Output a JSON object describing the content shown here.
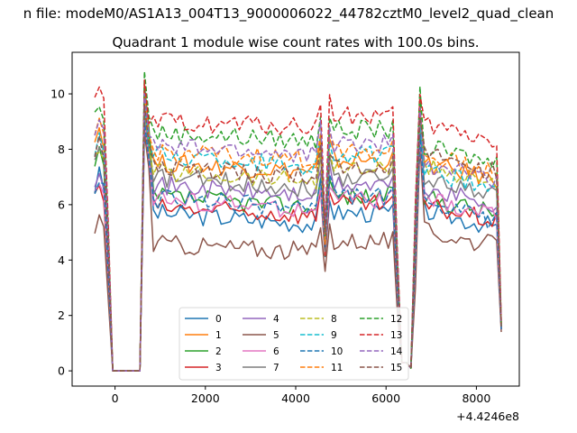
{
  "figure": {
    "suptitle": "n file: modeM0/AS1A13_004T13_9000006022_44782cztM0_level2_quad_clean",
    "title": "Quadrant 1 module wise count rates with 100.0s bins.",
    "x_offset_label": "+4.4246e8"
  },
  "chart_data": {
    "type": "line",
    "title": "Quadrant 1 module wise count rates with 100.0s bins.",
    "xlabel": "",
    "ylabel": "",
    "x_offset": 442460000,
    "xlim": [
      -950,
      8950
    ],
    "ylim": [
      -0.55,
      11.5
    ],
    "xticks": [
      0,
      2000,
      4000,
      6000,
      8000
    ],
    "xtick_labels": [
      "0",
      "2000",
      "4000",
      "6000",
      "8000"
    ],
    "yticks": [
      0,
      2,
      4,
      6,
      8,
      10
    ],
    "ytick_labels": [
      "0",
      "2",
      "4",
      "6",
      "8",
      "10"
    ],
    "grid": false,
    "legend_position": "lower-center",
    "legend_columns": 4,
    "series": [
      {
        "name": "0",
        "color": "#1f77b4",
        "dash": "solid",
        "base": 5.3,
        "first": 6.6,
        "spike": 9.0,
        "dip": 4.1,
        "end": 5.2,
        "last": 1.5,
        "slope": 0.4
      },
      {
        "name": "1",
        "color": "#ff7f0e",
        "dash": "solid",
        "base": 7.2,
        "first": 8.3,
        "spike": 9.9,
        "dip": 4.6,
        "end": 6.9,
        "last": 1.6,
        "slope": 0.3
      },
      {
        "name": "2",
        "color": "#2ca02c",
        "dash": "solid",
        "base": 5.9,
        "first": 7.3,
        "spike": 10.3,
        "dip": 4.4,
        "end": 5.7,
        "last": 1.5,
        "slope": 0.4
      },
      {
        "name": "3",
        "color": "#d62728",
        "dash": "solid",
        "base": 5.6,
        "first": 6.2,
        "spike": 9.2,
        "dip": 4.3,
        "end": 5.4,
        "last": 1.5,
        "slope": 0.3
      },
      {
        "name": "4",
        "color": "#9467bd",
        "dash": "solid",
        "base": 6.3,
        "first": 6.9,
        "spike": 9.3,
        "dip": 4.5,
        "end": 6.0,
        "last": 1.6,
        "slope": 0.4
      },
      {
        "name": "5",
        "color": "#8c564b",
        "dash": "solid",
        "base": 4.3,
        "first": 5.1,
        "spike": 8.6,
        "dip": 3.5,
        "end": 4.5,
        "last": 1.4,
        "slope": 0.3
      },
      {
        "name": "6",
        "color": "#e377c2",
        "dash": "solid",
        "base": 5.8,
        "first": 6.5,
        "spike": 9.0,
        "dip": 4.2,
        "end": 5.6,
        "last": 1.5,
        "slope": 0.4
      },
      {
        "name": "7",
        "color": "#7f7f7f",
        "dash": "solid",
        "base": 6.6,
        "first": 7.5,
        "spike": 9.4,
        "dip": 4.5,
        "end": 6.4,
        "last": 1.6,
        "slope": 0.4
      },
      {
        "name": "8",
        "color": "#bcbd22",
        "dash": "dashed",
        "base": 6.9,
        "first": 7.6,
        "spike": 9.5,
        "dip": 4.6,
        "end": 6.8,
        "last": 1.6,
        "slope": 0.3
      },
      {
        "name": "9",
        "color": "#17becf",
        "dash": "dashed",
        "base": 7.4,
        "first": 8.0,
        "spike": 9.6,
        "dip": 4.7,
        "end": 6.6,
        "last": 1.6,
        "slope": 0.4
      },
      {
        "name": "10",
        "color": "#1f77b4",
        "dash": "dashed",
        "base": 5.9,
        "first": 6.5,
        "spike": 9.0,
        "dip": 4.3,
        "end": 5.4,
        "last": 1.5,
        "slope": 0.3
      },
      {
        "name": "11",
        "color": "#ff7f0e",
        "dash": "dashed",
        "base": 7.6,
        "first": 8.5,
        "spike": 10.0,
        "dip": 4.8,
        "end": 7.2,
        "last": 1.7,
        "slope": 0.3
      },
      {
        "name": "12",
        "color": "#2ca02c",
        "dash": "dashed",
        "base": 8.3,
        "first": 9.2,
        "spike": 10.8,
        "dip": 5.0,
        "end": 7.5,
        "last": 1.7,
        "slope": 0.3
      },
      {
        "name": "13",
        "color": "#d62728",
        "dash": "dashed",
        "base": 8.8,
        "first": 9.6,
        "spike": 10.5,
        "dip": 5.2,
        "end": 8.3,
        "last": 1.8,
        "slope": 0.2
      },
      {
        "name": "14",
        "color": "#9467bd",
        "dash": "dashed",
        "base": 7.8,
        "first": 8.7,
        "spike": 10.0,
        "dip": 4.9,
        "end": 6.9,
        "last": 1.7,
        "slope": 0.3
      },
      {
        "name": "15",
        "color": "#8c564b",
        "dash": "dashed",
        "base": 7.0,
        "first": 7.8,
        "spike": 9.6,
        "dip": 4.7,
        "end": 7.2,
        "last": 1.6,
        "slope": 0.3
      }
    ]
  }
}
